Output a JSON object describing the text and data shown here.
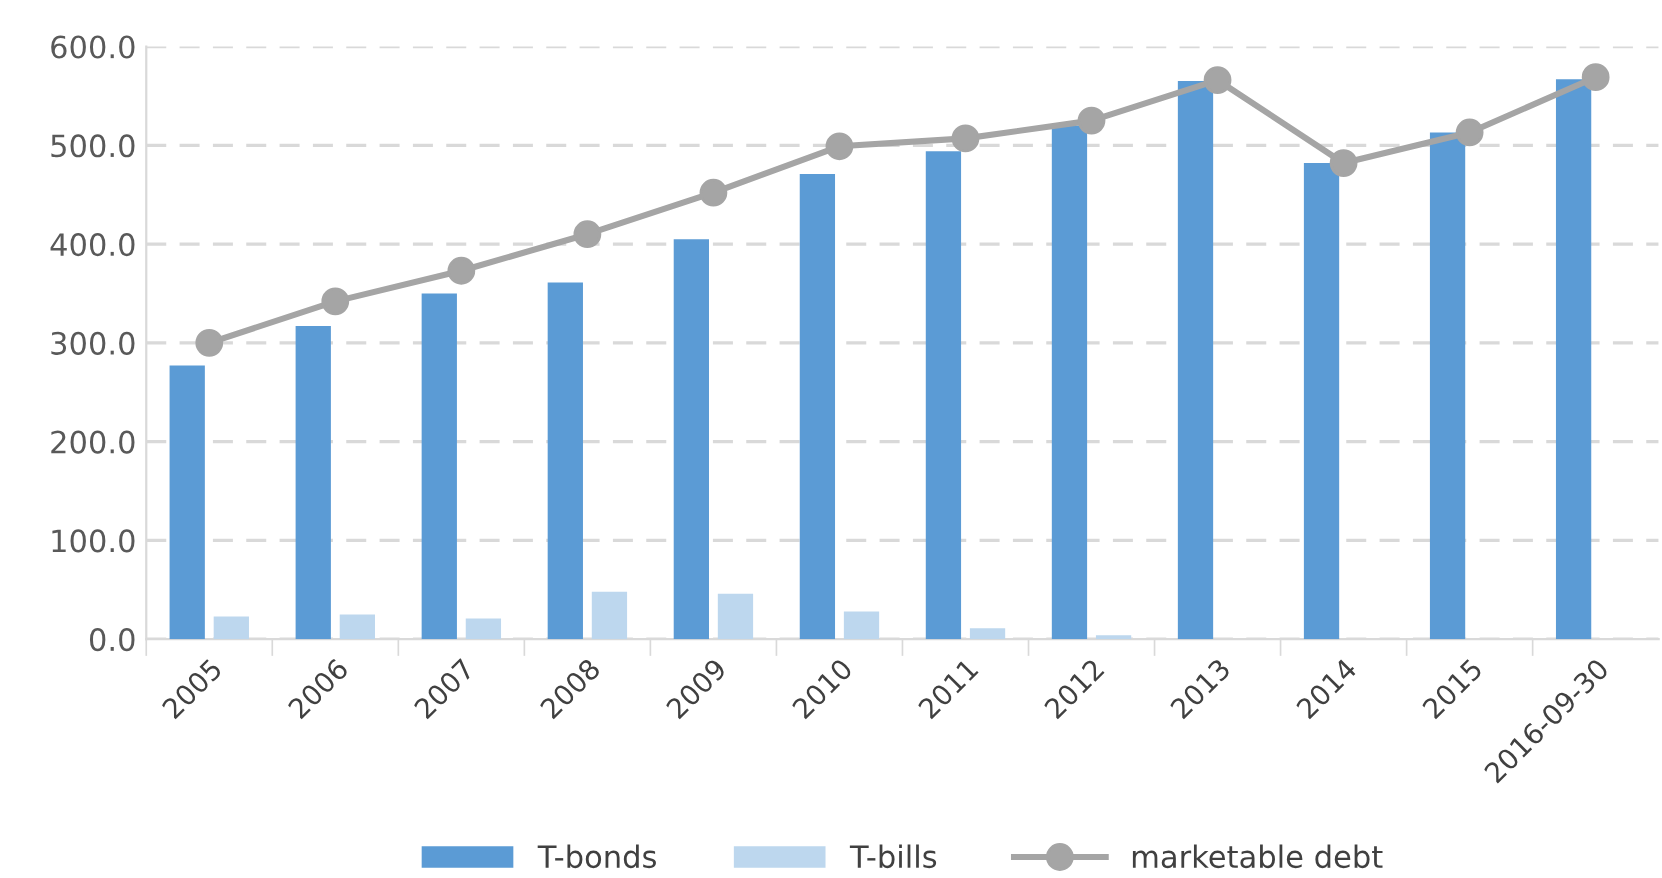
{
  "chart_data": {
    "type": "bar",
    "categories": [
      "2005",
      "2006",
      "2007",
      "2008",
      "2009",
      "2010",
      "2011",
      "2012",
      "2013",
      "2014",
      "2015",
      "2016-09-30"
    ],
    "series": [
      {
        "name": "T-bonds",
        "color": "#5b9bd5",
        "values": [
          277,
          317,
          350,
          361,
          405,
          471,
          494,
          520,
          565,
          482,
          513,
          567
        ]
      },
      {
        "name": "T-bills",
        "color": "#bdd7ee",
        "values": [
          23,
          25,
          21,
          48,
          46,
          28,
          11,
          4,
          0,
          0,
          0,
          0
        ]
      },
      {
        "name": "marketable debt",
        "type": "line",
        "color": "#a5a5a5",
        "values": [
          300,
          342,
          373,
          410,
          452,
          499,
          507,
          525,
          566,
          482,
          513,
          569
        ]
      }
    ],
    "ylim": [
      0,
      600
    ],
    "yticks": [
      {
        "value": 0,
        "label": "0.0"
      },
      {
        "value": 100,
        "label": "100.0"
      },
      {
        "value": 200,
        "label": "200.0"
      },
      {
        "value": 300,
        "label": "300.0"
      },
      {
        "value": 400,
        "label": "400.0"
      },
      {
        "value": 500,
        "label": "500.0"
      },
      {
        "value": 600,
        "label": "600.0"
      }
    ],
    "grid": "y",
    "legend": "bottom",
    "marker": "circle",
    "line_style": "solid"
  }
}
